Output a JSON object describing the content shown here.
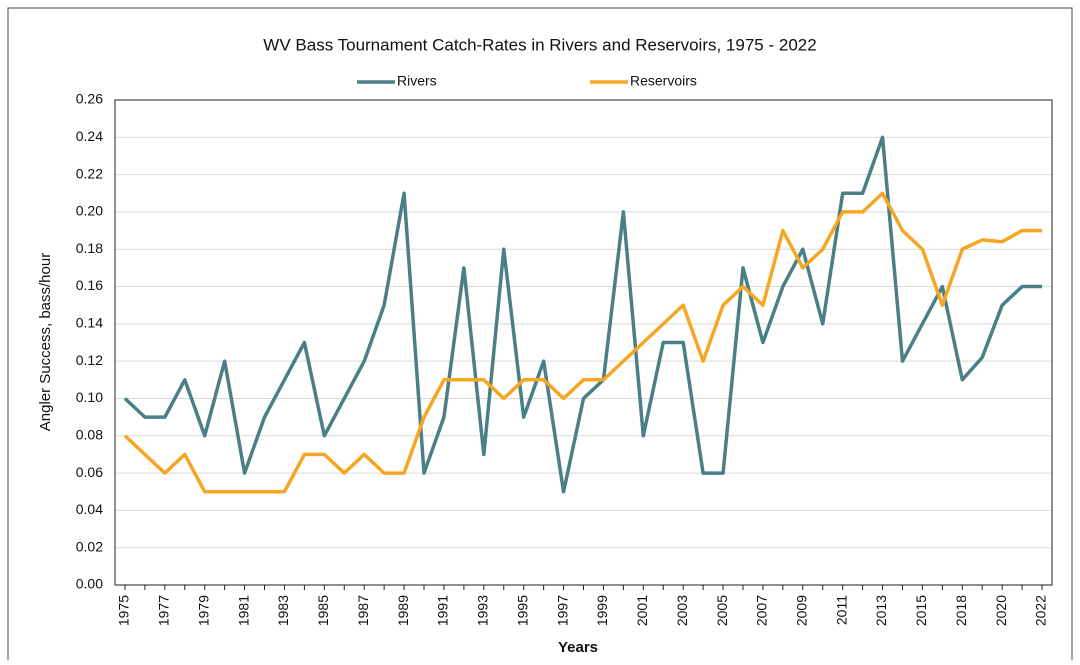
{
  "chart_data": {
    "type": "line",
    "title": "WV Bass Tournament Catch-Rates in Rivers and Reservoirs, 1975 - 2022",
    "x_label": "Years",
    "y_label": "Angler Success, bass/hour",
    "categories": [
      "1975",
      null,
      "1977",
      null,
      "1979",
      null,
      "1981",
      null,
      "1983",
      null,
      "1985",
      null,
      "1987",
      null,
      "1989",
      null,
      "1991",
      null,
      "1993",
      null,
      "1995",
      null,
      "1997",
      null,
      "1999",
      null,
      "2001",
      null,
      "2003",
      null,
      "2005",
      null,
      "2007",
      null,
      "2009",
      null,
      "2011",
      null,
      "2013",
      null,
      "2015",
      null,
      "2018",
      null,
      "2020",
      null,
      "2022"
    ],
    "series": [
      {
        "name": "Rivers",
        "color": "#4a7f86",
        "values": [
          0.1,
          0.09,
          0.09,
          0.11,
          0.08,
          0.12,
          0.06,
          0.09,
          0.11,
          0.13,
          0.08,
          0.1,
          0.12,
          0.15,
          0.21,
          0.06,
          0.09,
          0.17,
          0.07,
          0.18,
          0.09,
          0.12,
          0.05,
          0.1,
          0.11,
          0.2,
          0.08,
          0.13,
          0.13,
          0.06,
          0.06,
          0.17,
          0.13,
          0.16,
          0.18,
          0.14,
          0.21,
          0.21,
          0.24,
          0.12,
          0.14,
          0.16,
          0.11,
          0.122,
          0.15,
          0.16,
          0.16
        ]
      },
      {
        "name": "Reservoirs",
        "color": "#f5a623",
        "values": [
          0.08,
          0.07,
          0.06,
          0.07,
          0.05,
          0.05,
          0.05,
          0.05,
          0.05,
          0.07,
          0.07,
          0.06,
          0.07,
          0.06,
          0.06,
          0.09,
          0.11,
          0.11,
          0.11,
          0.1,
          0.11,
          0.11,
          0.1,
          0.11,
          0.11,
          0.12,
          0.13,
          0.14,
          0.15,
          0.12,
          0.15,
          0.16,
          0.15,
          0.19,
          0.17,
          0.18,
          0.2,
          0.2,
          0.21,
          0.19,
          0.18,
          0.15,
          0.18,
          0.185,
          0.184,
          0.19,
          0.19
        ]
      }
    ],
    "ylim": [
      0,
      0.26
    ],
    "yticks": [
      {
        "value": 0,
        "label": "0.00"
      },
      {
        "value": 0.02,
        "label": "0.02"
      },
      {
        "value": 0.04,
        "label": "0.04"
      },
      {
        "value": 0.06,
        "label": "0.06"
      },
      {
        "value": 0.08,
        "label": "0.08"
      },
      {
        "value": 0.1,
        "label": "0.10"
      },
      {
        "value": 0.12,
        "label": "0.12"
      },
      {
        "value": 0.14,
        "label": "0.14"
      },
      {
        "value": 0.16,
        "label": "0.16"
      },
      {
        "value": 0.18,
        "label": "0.18"
      },
      {
        "value": 0.2,
        "label": "0.20"
      },
      {
        "value": 0.22,
        "label": "0.22"
      },
      {
        "value": 0.24,
        "label": "0.24"
      },
      {
        "value": 0.26,
        "label": "0.26"
      }
    ],
    "grid": true,
    "legend": "top"
  }
}
